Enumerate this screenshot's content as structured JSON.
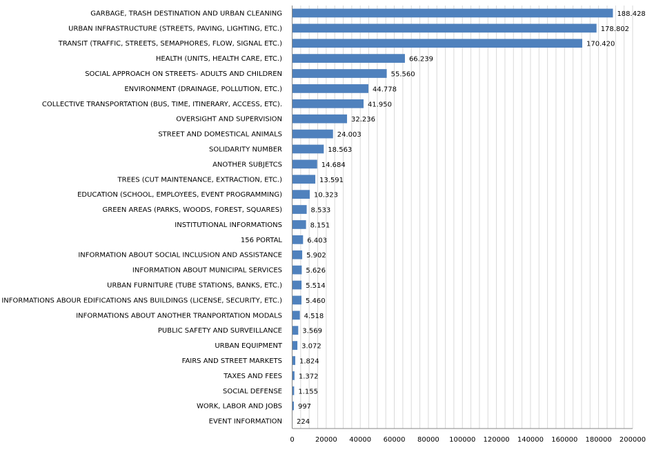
{
  "chart_data": {
    "type": "bar",
    "orientation": "horizontal",
    "title": "",
    "xlabel": "",
    "ylabel": "",
    "xlim": [
      0,
      200000
    ],
    "x_ticks": [
      "0",
      "20000",
      "40000",
      "60000",
      "80000",
      "100000",
      "120000",
      "140000",
      "160000",
      "180000",
      "200000"
    ],
    "x_tick_values": [
      0,
      20000,
      40000,
      60000,
      80000,
      100000,
      120000,
      140000,
      160000,
      180000,
      200000
    ],
    "grid": true,
    "bar_color": "#4F81BD",
    "categories": [
      "GARBAGE, TRASH DESTINATION  AND URBAN CLEANING",
      "URBAN INFRASTRUCTURE  (STREETS,  PAVING, LIGHTING, ETC.)",
      "TRANSIT (TRAFFIC, STREETS, SEMAPHORES, FLOW, SIGNAL ETC.)",
      "HEALTH (UNITS, HEALTH CARE, ETC.)",
      "SOCIAL APPROACH ON STREETS-  ADULTS AND CHILDREN",
      "ENVIRONMENT  (DRAINAGE, POLLUTION, ETC.)",
      "COLLECTIVE TRANSPORTATION (BUS, TIME, ITINERARY,  ACCESS, ETC).",
      "OVERSIGHT  AND SUPERVISION",
      "STREET AND DOMESTICAL ANIMALS",
      "SOLIDARITY NUMBER",
      "ANOTHER SUBJETCS",
      "TREES (CUT MAINTENANCE,  EXTRACTION, ETC.)",
      "EDUCATION (SCHOOL, EMPLOYEES,  EVENT  PROGRAMMING)",
      "GREEN AREAS (PARKS, WOODS, FOREST, SQUARES)",
      "INSTITUTIONAL  INFORMATIONS",
      "156 PORTAL",
      "INFORMATION ABOUT SOCIAL INCLUSION AND ASSISTANCE",
      "INFORMATION ABOUT MUNICIPAL SERVICES",
      "URBAN FURNITURE  (TUBE STATIONS, BANKS, ETC.)",
      "INFORMATIONS ABOUR EDIFICATIONS ANS BUILDINGS (LICENSE, SECURITY,  ETC.)",
      "INFORMATIONS ABOUT ANOTHER TRANPORTATION  MODALS",
      "PUBLIC SAFETY AND SURVEILLANCE",
      "URBAN EQUIPMENT",
      "FAIRS AND STREET  MARKETS",
      "TAXES AND FEES",
      "SOCIAL DEFENSE",
      "WORK, LABOR AND JOBS",
      "EVENT  INFORMATION"
    ],
    "values": [
      188428,
      178802,
      170420,
      66239,
      55560,
      44778,
      41950,
      32236,
      24003,
      18563,
      14684,
      13591,
      10323,
      8533,
      8151,
      6403,
      5902,
      5626,
      5514,
      5460,
      4518,
      3569,
      3072,
      1824,
      1372,
      1155,
      997,
      224
    ],
    "data_labels": [
      "188.428",
      "178.802",
      "170.420",
      "66.239",
      "55.560",
      "44.778",
      "41.950",
      "32.236",
      "24.003",
      "18.563",
      "14.684",
      "13.591",
      "10.323",
      "8.533",
      "8.151",
      "6.403",
      "5.902",
      "5.626",
      "5.514",
      "5.460",
      "4.518",
      "3.569",
      "3.072",
      "1.824",
      "1.372",
      "1.155",
      "997",
      "224"
    ]
  }
}
